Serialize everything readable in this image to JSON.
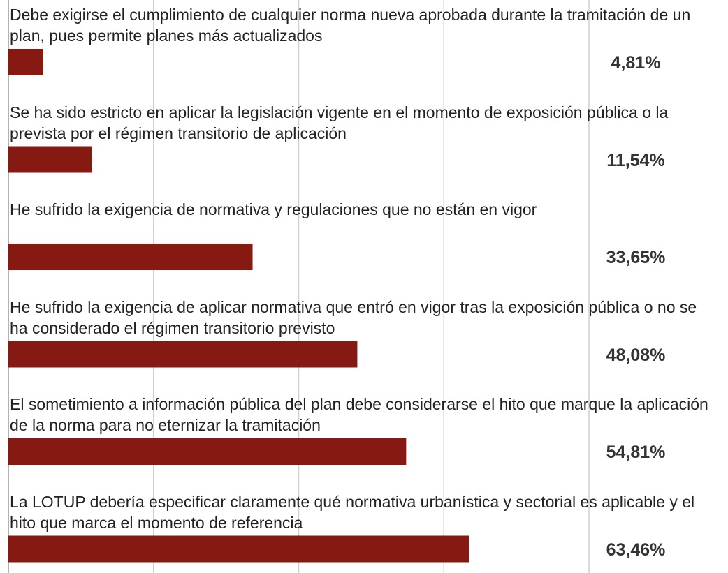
{
  "chart_data": {
    "type": "bar",
    "orientation": "horizontal",
    "categories": [
      "Debe exigirse el cumplimiento de cualquier norma nueva aprobada durante la tramitación de un plan, pues permite planes más actualizados",
      "Se ha sido estricto en aplicar la legislación vigente en el momento de exposición pública o la prevista por el régimen transitorio de aplicación",
      "He sufrido la exigencia de normativa y regulaciones que no están en vigor",
      "He sufrido la exigencia de aplicar normativa que entró en vigor tras la exposición pública o no se ha considerado el régimen transitorio previsto",
      "El sometimiento a información pública del plan debe considerarse el hito que marque la aplicación de la norma para no eternizar la tramitación",
      "La LOTUP debería especificar claramente qué normativa urbanística y sectorial es aplicable y el hito que marca el momento de referencia"
    ],
    "values": [
      4.81,
      11.54,
      33.65,
      48.08,
      54.81,
      63.46
    ],
    "value_labels": [
      "4,81%",
      "11,54%",
      "33,65%",
      "48,08%",
      "54,81%",
      "63,46%"
    ],
    "color": "#861a13",
    "xlim": [
      0,
      80
    ],
    "xticks": [
      0,
      20,
      40,
      60,
      80
    ],
    "grid": true
  }
}
